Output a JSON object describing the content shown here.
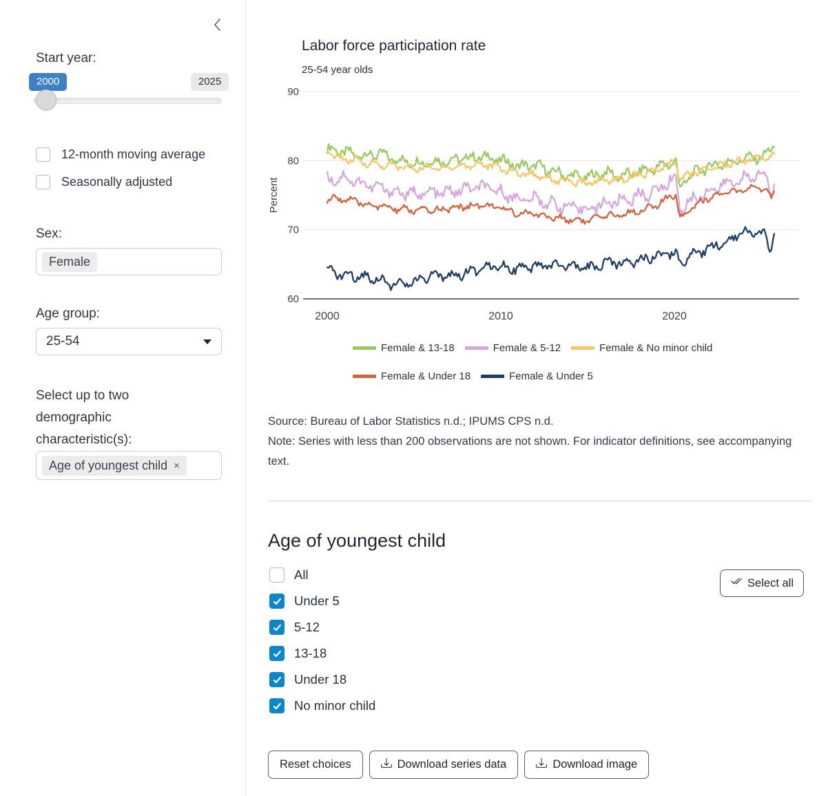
{
  "sidebar": {
    "collapse_icon": "chevron-left",
    "start_year": {
      "label": "Start year:",
      "value_badge": "2000",
      "max_badge": "2025",
      "value": 2000,
      "min": 2000,
      "max": 2025
    },
    "checkboxes": [
      {
        "label": "12-month moving average",
        "checked": false
      },
      {
        "label": "Seasonally adjusted",
        "checked": false
      }
    ],
    "sex": {
      "label": "Sex:",
      "tag": "Female"
    },
    "age_group": {
      "label": "Age group:",
      "value": "25-54"
    },
    "demographics": {
      "label": "Select up to two demographic characteristic(s):",
      "tag": "Age of youngest child",
      "tag_removable": true
    }
  },
  "chart_data": {
    "type": "line",
    "title": "Labor force participation rate",
    "subtitle": "25-54 year olds",
    "ylabel": "Percent",
    "ylim": [
      60,
      90
    ],
    "yticks": [
      60,
      70,
      80,
      90
    ],
    "xticks": [
      2000,
      2010,
      2020
    ],
    "xlim": [
      2000,
      2027.5
    ],
    "x_end": 2025.8,
    "frequency": "monthly",
    "grid": "horizontal",
    "legend_position": "bottom",
    "legend_rows": [
      [
        0,
        1,
        2
      ],
      [
        3,
        4
      ]
    ],
    "series": [
      {
        "name": "Female & 13-18",
        "color": "#97c95f",
        "jitter": 0.6,
        "anchors": [
          [
            2000,
            81.7
          ],
          [
            2001,
            81.2
          ],
          [
            2002,
            80.7
          ],
          [
            2003,
            81.0
          ],
          [
            2004,
            80.1
          ],
          [
            2005,
            79.7
          ],
          [
            2006,
            79.8
          ],
          [
            2007,
            80.0
          ],
          [
            2008,
            80.4
          ],
          [
            2009,
            80.6
          ],
          [
            2010,
            80.1
          ],
          [
            2011,
            79.2
          ],
          [
            2012,
            79.3
          ],
          [
            2013,
            78.4
          ],
          [
            2014,
            77.8
          ],
          [
            2015,
            77.6
          ],
          [
            2016,
            78.3
          ],
          [
            2017,
            77.7
          ],
          [
            2018,
            78.4
          ],
          [
            2019,
            79.0
          ],
          [
            2020.1,
            79.9
          ],
          [
            2020.3,
            75.9
          ],
          [
            2020.8,
            77.6
          ],
          [
            2021,
            78.0
          ],
          [
            2022,
            79.2
          ],
          [
            2023,
            79.6
          ],
          [
            2024,
            80.3
          ],
          [
            2025.2,
            80.6
          ],
          [
            2025.7,
            82.3
          ],
          [
            2025.8,
            81.5
          ]
        ]
      },
      {
        "name": "Female & 5-12",
        "color": "#d5a6dd",
        "jitter": 0.7,
        "anchors": [
          [
            2000,
            77.2
          ],
          [
            2001,
            77.6
          ],
          [
            2002,
            76.7
          ],
          [
            2003,
            76.1
          ],
          [
            2004,
            75.4
          ],
          [
            2005,
            75.2
          ],
          [
            2006,
            75.3
          ],
          [
            2007,
            75.4
          ],
          [
            2008,
            75.9
          ],
          [
            2009,
            76.2
          ],
          [
            2010,
            75.4
          ],
          [
            2011,
            74.5
          ],
          [
            2012,
            74.4
          ],
          [
            2013,
            73.7
          ],
          [
            2014,
            73.2
          ],
          [
            2015,
            73.0
          ],
          [
            2016,
            73.8
          ],
          [
            2017,
            74.2
          ],
          [
            2018,
            74.9
          ],
          [
            2019,
            75.6
          ],
          [
            2020.1,
            77.8
          ],
          [
            2020.3,
            72.8
          ],
          [
            2021,
            74.3
          ],
          [
            2022,
            75.6
          ],
          [
            2023,
            76.6
          ],
          [
            2024,
            77.4
          ],
          [
            2025.3,
            78.0
          ],
          [
            2025.6,
            74.9
          ],
          [
            2025.8,
            77.4
          ]
        ]
      },
      {
        "name": "Female & No minor child",
        "color": "#f5c667",
        "jitter": 0.42,
        "anchors": [
          [
            2000,
            81.2
          ],
          [
            2001,
            80.2
          ],
          [
            2002,
            79.8
          ],
          [
            2003,
            79.4
          ],
          [
            2004,
            79.2
          ],
          [
            2005,
            78.9
          ],
          [
            2006,
            79.0
          ],
          [
            2007,
            79.0
          ],
          [
            2008,
            79.3
          ],
          [
            2009,
            79.5
          ],
          [
            2010,
            78.9
          ],
          [
            2011,
            78.2
          ],
          [
            2012,
            78.0
          ],
          [
            2013,
            77.3
          ],
          [
            2014,
            76.9
          ],
          [
            2015,
            76.7
          ],
          [
            2016,
            77.2
          ],
          [
            2017,
            77.4
          ],
          [
            2018,
            77.9
          ],
          [
            2019,
            78.6
          ],
          [
            2020.1,
            79.9
          ],
          [
            2020.3,
            77.2
          ],
          [
            2021,
            78.2
          ],
          [
            2022,
            78.9
          ],
          [
            2023,
            79.5
          ],
          [
            2024,
            80.1
          ],
          [
            2025.8,
            80.6
          ]
        ]
      },
      {
        "name": "Female & Under 18",
        "color": "#d2633f",
        "jitter": 0.4,
        "anchors": [
          [
            2000,
            74.4
          ],
          [
            2001,
            74.5
          ],
          [
            2002,
            73.8
          ],
          [
            2003,
            73.4
          ],
          [
            2004,
            73.0
          ],
          [
            2005,
            72.8
          ],
          [
            2006,
            72.8
          ],
          [
            2007,
            73.0
          ],
          [
            2008,
            73.4
          ],
          [
            2009,
            73.6
          ],
          [
            2010,
            73.1
          ],
          [
            2011,
            72.4
          ],
          [
            2012,
            72.3
          ],
          [
            2013,
            71.7
          ],
          [
            2014,
            71.5
          ],
          [
            2015,
            71.3
          ],
          [
            2016,
            71.9
          ],
          [
            2017,
            72.2
          ],
          [
            2018,
            72.8
          ],
          [
            2019,
            73.5
          ],
          [
            2020.1,
            75.3
          ],
          [
            2020.3,
            71.6
          ],
          [
            2021,
            73.3
          ],
          [
            2022,
            74.7
          ],
          [
            2023,
            75.3
          ],
          [
            2024,
            75.7
          ],
          [
            2025.3,
            76.1
          ],
          [
            2025.6,
            74.2
          ],
          [
            2025.8,
            76.6
          ]
        ]
      },
      {
        "name": "Female & Under 5",
        "color": "#1e3c66",
        "jitter": 0.55,
        "anchors": [
          [
            2000,
            64.0
          ],
          [
            2001,
            63.4
          ],
          [
            2002,
            63.3
          ],
          [
            2003,
            62.9
          ],
          [
            2004,
            61.9
          ],
          [
            2005,
            62.4
          ],
          [
            2006,
            63.2
          ],
          [
            2007,
            63.4
          ],
          [
            2008,
            63.6
          ],
          [
            2009,
            64.7
          ],
          [
            2010,
            64.9
          ],
          [
            2011,
            64.2
          ],
          [
            2012,
            64.6
          ],
          [
            2013,
            64.9
          ],
          [
            2014,
            64.6
          ],
          [
            2015,
            64.4
          ],
          [
            2016,
            65.1
          ],
          [
            2017,
            65.3
          ],
          [
            2018,
            65.6
          ],
          [
            2019,
            66.2
          ],
          [
            2020.1,
            66.8
          ],
          [
            2020.3,
            64.9
          ],
          [
            2021,
            66.3
          ],
          [
            2022,
            67.3
          ],
          [
            2023,
            68.3
          ],
          [
            2024,
            69.9
          ],
          [
            2025.2,
            69.2
          ],
          [
            2025.5,
            66.9
          ],
          [
            2025.8,
            70.4
          ]
        ]
      }
    ]
  },
  "notes": {
    "source": "Source: Bureau of Labor Statistics n.d.; IPUMS CPS n.d.",
    "note": "Note: Series with less than 200 observations are not shown. For indicator definitions, see accompanying text."
  },
  "child_section": {
    "title": "Age of youngest child",
    "select_all_label": "Select all",
    "options": [
      {
        "label": "All",
        "checked": false
      },
      {
        "label": "Under 5",
        "checked": true
      },
      {
        "label": "5-12",
        "checked": true
      },
      {
        "label": "13-18",
        "checked": true
      },
      {
        "label": "Under 18",
        "checked": true
      },
      {
        "label": "No minor child",
        "checked": true
      }
    ]
  },
  "actions": {
    "reset_label": "Reset choices",
    "download_data_label": "Download series data",
    "download_image_label": "Download image"
  },
  "colors": {
    "accent_blue": "#3d80c4",
    "checkbox_blue": "#0d86ca",
    "axis_line": "#6e6e6e",
    "gridline": "#e7e7e7"
  }
}
